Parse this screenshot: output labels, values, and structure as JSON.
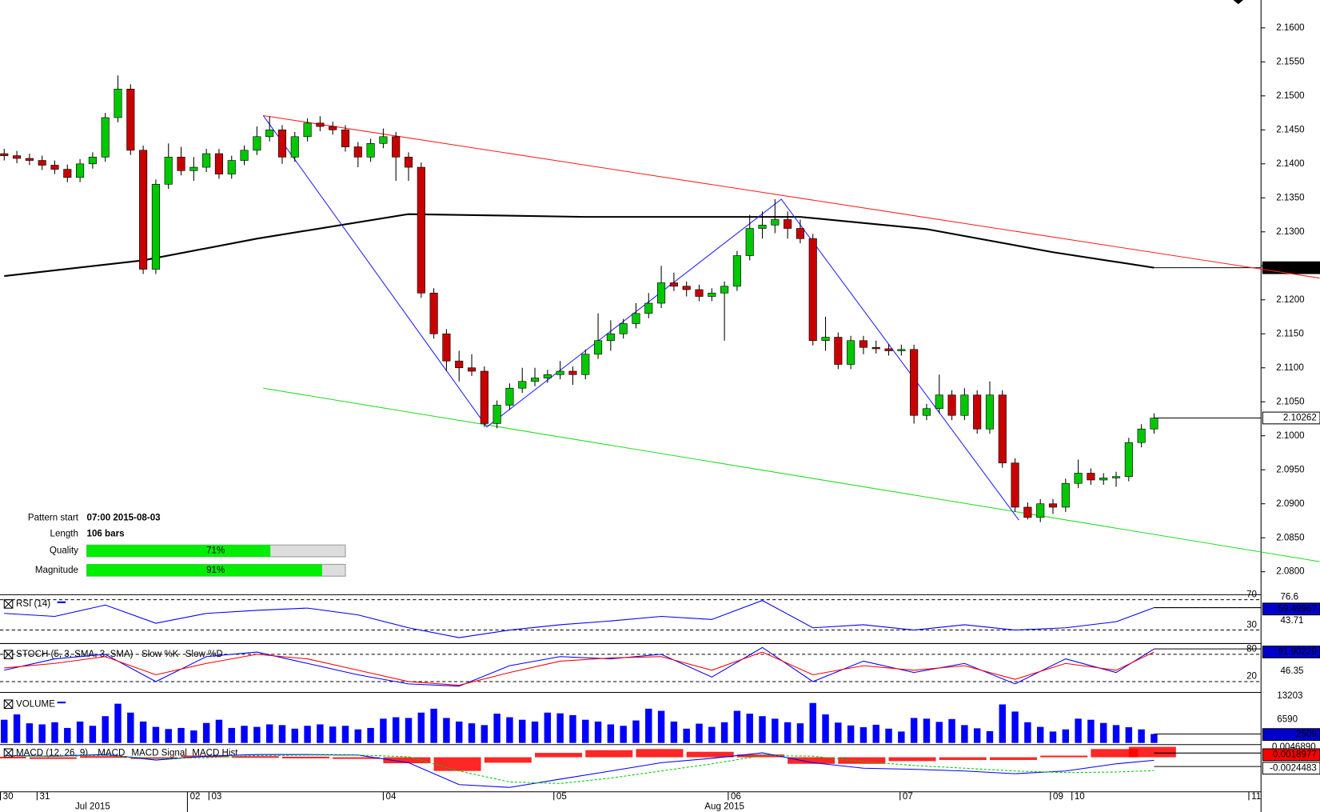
{
  "chart_data": {
    "type": "candlestick",
    "xlim": [
      -0.3333,
      99.4667
    ],
    "xticks": [
      {
        "value": -0.3,
        "label": "30"
      },
      {
        "value": 2.6,
        "label": "31"
      },
      {
        "value": 14.5,
        "label": "02"
      },
      {
        "value": 16.2,
        "label": "03"
      },
      {
        "value": 30,
        "label": "04"
      },
      {
        "value": 43.5,
        "label": "05"
      },
      {
        "value": 57.3,
        "label": "06"
      },
      {
        "value": 70.9,
        "label": "07"
      },
      {
        "value": 82.8,
        "label": "09"
      },
      {
        "value": 84.5,
        "label": "10"
      },
      {
        "value": 98.5,
        "label": "11"
      }
    ],
    "month_ticks": [
      {
        "value": 7,
        "label": "Jul 2015"
      },
      {
        "value": 57,
        "label": "Aug 2015"
      }
    ],
    "price": {
      "ylim": [
        2.077,
        2.1641
      ],
      "yticks": [
        {
          "value": 2.08,
          "label": "2.0800"
        },
        {
          "value": 2.085,
          "label": "2.0850"
        },
        {
          "value": 2.09,
          "label": "2.0900"
        },
        {
          "value": 2.095,
          "label": "2.0950"
        },
        {
          "value": 2.1,
          "label": "2.1000"
        },
        {
          "value": 2.105,
          "label": "2.1050"
        },
        {
          "value": 2.11,
          "label": "2.1100"
        },
        {
          "value": 2.115,
          "label": "2.1150"
        },
        {
          "value": 2.12,
          "label": "2.1200"
        },
        {
          "value": 2.125,
          "label": "2.1250"
        },
        {
          "value": 2.13,
          "label": "2.1300"
        },
        {
          "value": 2.135,
          "label": "2.1350"
        },
        {
          "value": 2.14,
          "label": "2.1400"
        },
        {
          "value": 2.145,
          "label": "2.1450"
        },
        {
          "value": 2.15,
          "label": "2.1500"
        },
        {
          "value": 2.155,
          "label": "2.1550"
        },
        {
          "value": 2.16,
          "label": "2.1600"
        }
      ],
      "up_color": "#00c800",
      "down_color": "#c80000",
      "open": [
        2.1415,
        2.1412,
        2.1408,
        2.1405,
        2.1398,
        2.1392,
        2.138,
        2.14,
        2.141,
        2.1468,
        2.151,
        2.142,
        2.1245,
        2.137,
        2.141,
        2.139,
        2.1395,
        2.1415,
        2.1385,
        2.1405,
        2.142,
        2.144,
        2.145,
        2.141,
        2.144,
        2.146,
        2.1455,
        2.145,
        2.1425,
        2.141,
        2.143,
        2.144,
        2.141,
        2.1395,
        2.121,
        2.115,
        2.111,
        2.11,
        2.1095,
        2.1018,
        2.1045,
        2.107,
        2.108,
        2.1085,
        2.109,
        2.1095,
        2.109,
        2.112,
        2.114,
        2.115,
        2.1165,
        2.118,
        2.1195,
        2.1225,
        2.122,
        2.1215,
        2.1205,
        2.121,
        2.122,
        2.1265,
        2.1305,
        2.131,
        2.1318,
        2.1305,
        2.129,
        2.114,
        2.1145,
        2.1105,
        2.114,
        2.113,
        2.1128,
        2.1125,
        2.1127,
        2.103,
        2.104,
        2.106,
        2.103,
        2.106,
        2.101,
        2.106,
        2.096,
        2.0895,
        2.088,
        2.09,
        2.0895,
        2.093,
        2.0945,
        2.0935,
        2.0938,
        2.094,
        2.099,
        2.101
      ],
      "high": [
        2.1422,
        2.1419,
        2.1415,
        2.1412,
        2.1405,
        2.1399,
        2.1407,
        2.1417,
        2.1475,
        2.153,
        2.1517,
        2.1427,
        2.1377,
        2.143,
        2.1425,
        2.141,
        2.1422,
        2.1422,
        2.1412,
        2.1427,
        2.1455,
        2.147,
        2.1457,
        2.1447,
        2.1467,
        2.147,
        2.1462,
        2.1457,
        2.1432,
        2.1437,
        2.1452,
        2.1447,
        2.1417,
        2.1402,
        2.1217,
        2.1157,
        2.1125,
        2.112,
        2.1102,
        2.1052,
        2.1077,
        2.11,
        2.11,
        2.1097,
        2.111,
        2.1102,
        2.1127,
        2.118,
        2.117,
        2.1172,
        2.1195,
        2.121,
        2.125,
        2.124,
        2.1227,
        2.1222,
        2.1217,
        2.1227,
        2.1272,
        2.1325,
        2.133,
        2.1348,
        2.133,
        2.1318,
        2.1297,
        2.1175,
        2.1152,
        2.1147,
        2.1147,
        2.114,
        2.1135,
        2.1134,
        2.1134,
        2.1047,
        2.109,
        2.1067,
        2.107,
        2.1067,
        2.108,
        2.1067,
        2.0967,
        2.0902,
        2.0907,
        2.0907,
        2.0937,
        2.0965,
        2.0952,
        2.0945,
        2.0947,
        2.0997,
        2.1017,
        2.1033
      ],
      "low": [
        2.1405,
        2.1401,
        2.1398,
        2.1391,
        2.1385,
        2.1373,
        2.1373,
        2.1393,
        2.1403,
        2.1461,
        2.1413,
        2.1238,
        2.1238,
        2.1363,
        2.1383,
        2.1375,
        2.1388,
        2.1378,
        2.1378,
        2.1398,
        2.1413,
        2.1433,
        2.14,
        2.1403,
        2.1433,
        2.1448,
        2.1443,
        2.1418,
        2.1395,
        2.1403,
        2.1423,
        2.1375,
        2.1375,
        2.1203,
        2.1143,
        2.1095,
        2.108,
        2.1088,
        2.1013,
        2.1011,
        2.1038,
        2.1063,
        2.1073,
        2.1078,
        2.1083,
        2.1075,
        2.1083,
        2.1113,
        2.1125,
        2.1143,
        2.1158,
        2.1173,
        2.1188,
        2.1213,
        2.1205,
        2.1198,
        2.1198,
        2.114,
        2.1213,
        2.1258,
        2.129,
        2.1298,
        2.129,
        2.1283,
        2.1133,
        2.1125,
        2.1098,
        2.1098,
        2.112,
        2.1121,
        2.1118,
        2.1118,
        2.1018,
        2.1023,
        2.1033,
        2.1023,
        2.1023,
        2.1003,
        2.1003,
        2.0953,
        2.0888,
        2.0877,
        2.0873,
        2.0885,
        2.0888,
        2.0923,
        2.0928,
        2.0928,
        2.0925,
        2.0933,
        2.0983,
        2.1003
      ],
      "close": [
        2.1412,
        2.1408,
        2.1405,
        2.1398,
        2.1392,
        2.138,
        2.14,
        2.141,
        2.1468,
        2.151,
        2.142,
        2.1245,
        2.137,
        2.141,
        2.139,
        2.1395,
        2.1415,
        2.1385,
        2.1405,
        2.142,
        2.144,
        2.145,
        2.141,
        2.144,
        2.146,
        2.1455,
        2.145,
        2.1425,
        2.141,
        2.143,
        2.144,
        2.141,
        2.1395,
        2.121,
        2.115,
        2.111,
        2.11,
        2.1095,
        2.1018,
        2.1045,
        2.107,
        2.108,
        2.1085,
        2.109,
        2.1095,
        2.109,
        2.112,
        2.114,
        2.115,
        2.1165,
        2.118,
        2.1195,
        2.1225,
        2.122,
        2.1215,
        2.1205,
        2.121,
        2.122,
        2.1265,
        2.1305,
        2.131,
        2.1318,
        2.1305,
        2.129,
        2.114,
        2.1145,
        2.1105,
        2.114,
        2.113,
        2.1128,
        2.1125,
        2.1127,
        2.103,
        2.104,
        2.106,
        2.103,
        2.106,
        2.101,
        2.106,
        2.096,
        2.0895,
        2.088,
        2.09,
        2.0895,
        2.093,
        2.0945,
        2.0935,
        2.0938,
        2.094,
        2.099,
        2.101,
        2.1026
      ],
      "last_value": 2.10262
    },
    "moving_average": {
      "x": [
        0,
        11,
        20,
        32,
        46,
        63,
        73,
        83,
        91
      ],
      "values": [
        2.1235,
        2.1258,
        2.129,
        2.1326,
        2.1322,
        2.1322,
        2.1304,
        2.127,
        2.12472
      ],
      "color": "#000000"
    },
    "resistance": {
      "x": [
        20.5,
        104.1
      ],
      "values": [
        2.1471,
        2.1232
      ],
      "color": "#ff2020"
    },
    "support": {
      "x": [
        20.5,
        104.1
      ],
      "values": [
        2.107,
        2.0815
      ],
      "color": "#20dd20"
    },
    "zigzag": {
      "x": [
        20.5,
        38.2,
        61.5,
        80.3
      ],
      "values": [
        2.1471,
        2.1013,
        2.1348,
        2.0876
      ],
      "color": "#2020ff"
    },
    "pattern_info": {
      "start_label": "Pattern start",
      "start": "07:00 2015-08-03",
      "length_label": "Length",
      "length": "106 bars",
      "quality_label": "Quality",
      "quality": 71,
      "quality_text": "71%",
      "magnitude_label": "Magnitude",
      "magnitude": 91,
      "magnitude_text": "91%",
      "bar_color": "#00ee00"
    },
    "rsi": {
      "title": "RSI (14)",
      "ylim": [
        14.4,
        74.4
      ],
      "yticks": [
        70,
        30
      ],
      "scale_labels": [
        "76.6",
        "43.71"
      ],
      "color": "#0000ff",
      "x": [
        0,
        4,
        8,
        12,
        16,
        20,
        24,
        28,
        32,
        36,
        40,
        44,
        48,
        52,
        56,
        60,
        64,
        68,
        72,
        76,
        80,
        84,
        88,
        91
      ],
      "values": [
        52,
        48,
        63,
        39,
        52,
        56,
        59,
        50,
        33,
        20,
        30,
        37,
        42,
        48,
        44,
        69,
        33,
        37,
        30,
        37,
        30,
        33,
        41,
        59.49967
      ]
    },
    "stoch": {
      "title": "STOCH (5, 3, SMA, 3, SMA)",
      "k_name": "Slow %K",
      "d_name": "Slow %D",
      "k_color": "#0000ff",
      "d_color": "#ff0000",
      "ylim": [
        0,
        100
      ],
      "yticks": [
        80,
        20
      ],
      "scale_labels": [
        "46.35"
      ],
      "x": [
        0,
        4,
        8,
        12,
        16,
        20,
        24,
        28,
        32,
        36,
        40,
        44,
        48,
        52,
        56,
        60,
        64,
        68,
        72,
        76,
        80,
        84,
        88,
        91
      ],
      "k": [
        45,
        70,
        80,
        20,
        75,
        85,
        60,
        35,
        15,
        10,
        55,
        75,
        70,
        80,
        30,
        95,
        20,
        65,
        40,
        60,
        15,
        70,
        40,
        91.90229
      ],
      "d": [
        50,
        60,
        75,
        35,
        60,
        80,
        70,
        45,
        20,
        12,
        40,
        65,
        72,
        75,
        45,
        85,
        35,
        55,
        45,
        55,
        25,
        60,
        45,
        85
      ]
    },
    "volume": {
      "title": "VOLUME",
      "ylim": [
        0,
        13700
      ],
      "yticks": [
        13203,
        6590
      ],
      "color": "#0000ff",
      "values": [
        6500,
        8000,
        5500,
        5200,
        5800,
        4200,
        6000,
        4800,
        7500,
        11000,
        8500,
        6000,
        4500,
        3900,
        4200,
        3500,
        5600,
        6500,
        4200,
        4800,
        4500,
        5200,
        5000,
        4000,
        4800,
        5200,
        4600,
        4800,
        3800,
        4200,
        6800,
        7200,
        7000,
        8500,
        9600,
        7000,
        6000,
        5500,
        5000,
        8200,
        7200,
        6500,
        6000,
        8500,
        8300,
        7800,
        6500,
        6000,
        5200,
        4800,
        6300,
        9600,
        9000,
        6000,
        4000,
        5400,
        4500,
        5800,
        9000,
        8200,
        7500,
        6800,
        5800,
        5500,
        11200,
        8000,
        5700,
        4900,
        4400,
        5100,
        4000,
        3200,
        7000,
        6800,
        5900,
        6700,
        5000,
        4100,
        3300,
        10800,
        8800,
        5800,
        4500,
        3200,
        3800,
        6800,
        6500,
        5600,
        5000,
        4400,
        3800,
        2509
      ]
    },
    "macd": {
      "title": "MACD (12, 26, 9)",
      "macd_name": "MACD",
      "signal_name": "MACD Signal",
      "hist_name": "MACD Hist",
      "macd_color": "#0000ff",
      "signal_color": "#00cc00",
      "hist_color": "#ff0000",
      "ylim": [
        -0.006,
        0.002
      ],
      "scale_labels": [
        "0.0046890"
      ],
      "x": [
        0,
        4,
        8,
        12,
        16,
        20,
        24,
        28,
        32,
        36,
        40,
        44,
        48,
        52,
        56,
        60,
        64,
        68,
        72,
        76,
        80,
        84,
        88,
        91
      ],
      "macd": [
        0.0003,
        0.0002,
        0.0005,
        -0.0005,
        0.0002,
        0.0005,
        0.0005,
        0.0004,
        -0.001,
        -0.005,
        -0.0055,
        -0.004,
        -0.0025,
        -0.001,
        -0.0002,
        0.0008,
        -0.001,
        -0.002,
        -0.0022,
        -0.0025,
        -0.003,
        -0.0025,
        -0.0012,
        -0.0005506
      ],
      "signal": [
        0.0002,
        0.0002,
        0.0003,
        -0.0002,
        -0.0001,
        0.0003,
        0.0004,
        0.0004,
        0.0001,
        -0.0025,
        -0.0045,
        -0.0048,
        -0.0038,
        -0.0025,
        -0.0012,
        0.0003,
        0.0002,
        -0.0008,
        -0.0015,
        -0.002,
        -0.0025,
        -0.0028,
        -0.0027,
        -0.0024483
      ],
      "hist": [
        0.0001,
        0,
        0.0002,
        -0.0003,
        0.0003,
        0.0002,
        0.0001,
        0,
        -0.0011,
        -0.0025,
        -0.001,
        0.0008,
        0.0013,
        0.0015,
        0.001,
        0.0005,
        -0.0012,
        -0.0012,
        -0.0007,
        -0.0005,
        -0.0005,
        0.0003,
        0.0015,
        0.0018977
      ]
    }
  }
}
